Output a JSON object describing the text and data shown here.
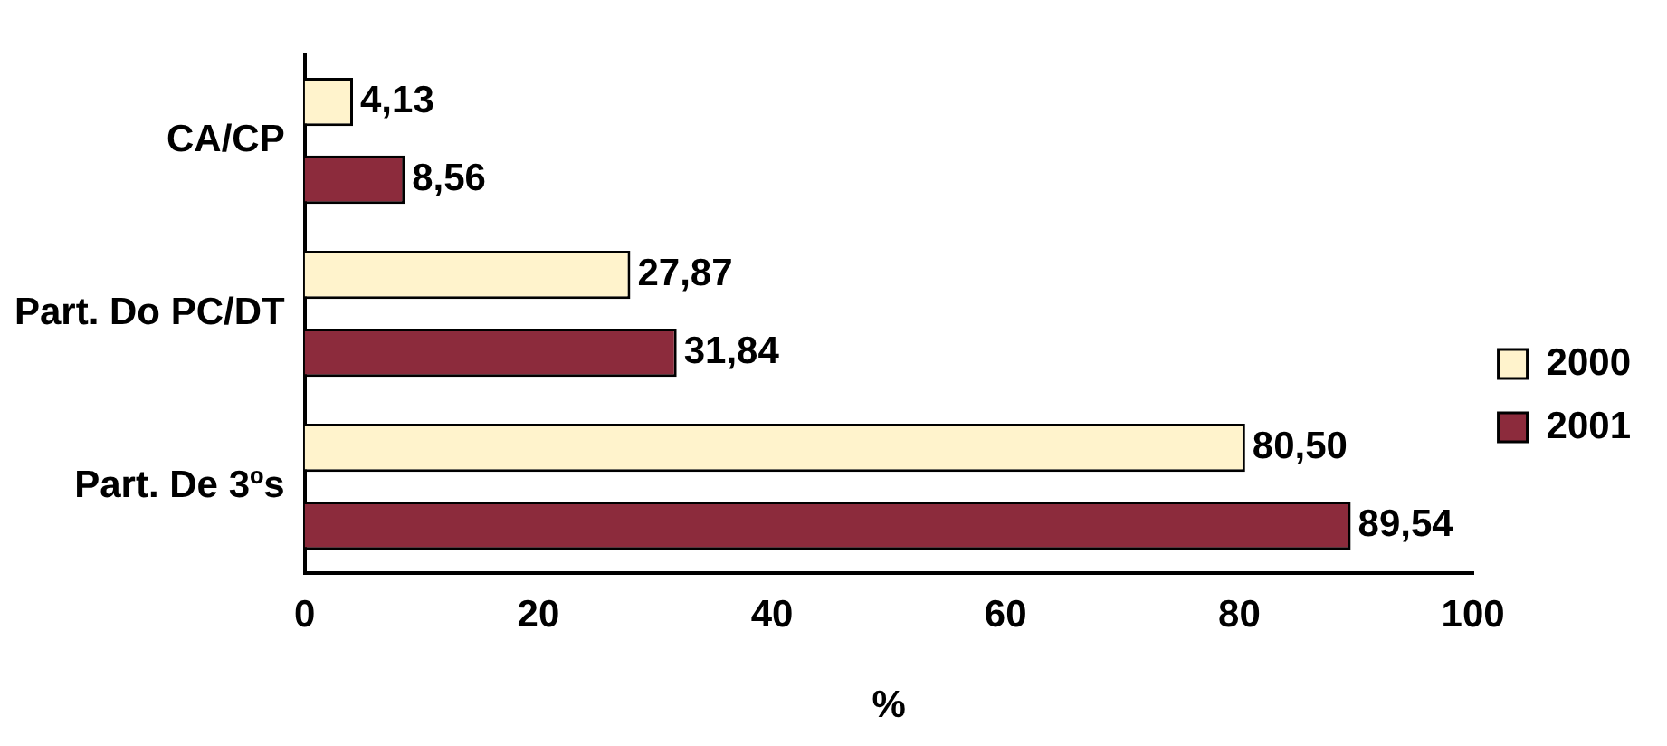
{
  "chart_data": {
    "type": "bar",
    "orientation": "horizontal",
    "categories": [
      "CA/CP",
      "Part. Do PC/DT",
      "Part. De 3ºs"
    ],
    "series": [
      {
        "name": "2000",
        "color": "#fff3cc",
        "values": [
          4.13,
          27.87,
          80.5
        ],
        "value_labels": [
          "4,13",
          "27,87",
          "80,50"
        ]
      },
      {
        "name": "2001",
        "color": "#8c2b3c",
        "values": [
          8.56,
          31.84,
          89.54
        ],
        "value_labels": [
          "8,56",
          "31,84",
          "89,54"
        ]
      }
    ],
    "xlim": [
      0,
      100
    ],
    "xticks": [
      0,
      20,
      40,
      60,
      80,
      100
    ],
    "xlabel": "%",
    "legend": "right",
    "grid": false
  }
}
